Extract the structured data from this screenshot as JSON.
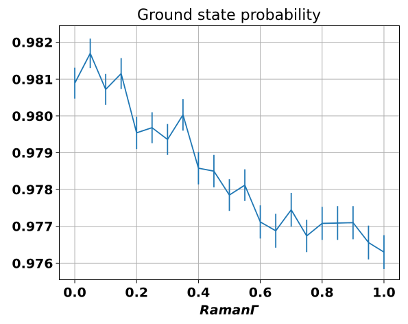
{
  "chart_data": {
    "type": "line",
    "title": "Ground state probability",
    "xlabel": "RamanΓ",
    "ylabel": "",
    "xlim": [
      -0.05,
      1.05
    ],
    "ylim": [
      0.97555,
      0.98245
    ],
    "grid": true,
    "xticks": [
      0.0,
      0.2,
      0.4,
      0.6,
      0.8,
      1.0
    ],
    "xtick_labels": [
      "0.0",
      "0.2",
      "0.4",
      "0.6",
      "0.8",
      "1.0"
    ],
    "yticks": [
      0.976,
      0.977,
      0.978,
      0.979,
      0.98,
      0.981,
      0.982
    ],
    "ytick_labels": [
      "0.976",
      "0.977",
      "0.978",
      "0.979",
      "0.980",
      "0.981",
      "0.982"
    ],
    "series": [
      {
        "color": "#1f77b4",
        "x": [
          0.0,
          0.05,
          0.1,
          0.15,
          0.2,
          0.25,
          0.3,
          0.35,
          0.4,
          0.45,
          0.5,
          0.55,
          0.6,
          0.65,
          0.7,
          0.75,
          0.8,
          0.85,
          0.9,
          0.95,
          1.0
        ],
        "y": [
          0.98089,
          0.9817,
          0.98072,
          0.98115,
          0.97954,
          0.97968,
          0.97936,
          0.98003,
          0.97858,
          0.9785,
          0.97785,
          0.97812,
          0.97712,
          0.97688,
          0.97745,
          0.97674,
          0.97708,
          0.97709,
          0.9771,
          0.97656,
          0.9763
        ],
        "yerr": [
          0.00042,
          0.0004,
          0.00042,
          0.00042,
          0.00044,
          0.00042,
          0.00042,
          0.00043,
          0.00044,
          0.00044,
          0.00043,
          0.00043,
          0.00045,
          0.00046,
          0.00046,
          0.00044,
          0.00045,
          0.00046,
          0.00045,
          0.00046,
          0.00046
        ]
      }
    ]
  }
}
